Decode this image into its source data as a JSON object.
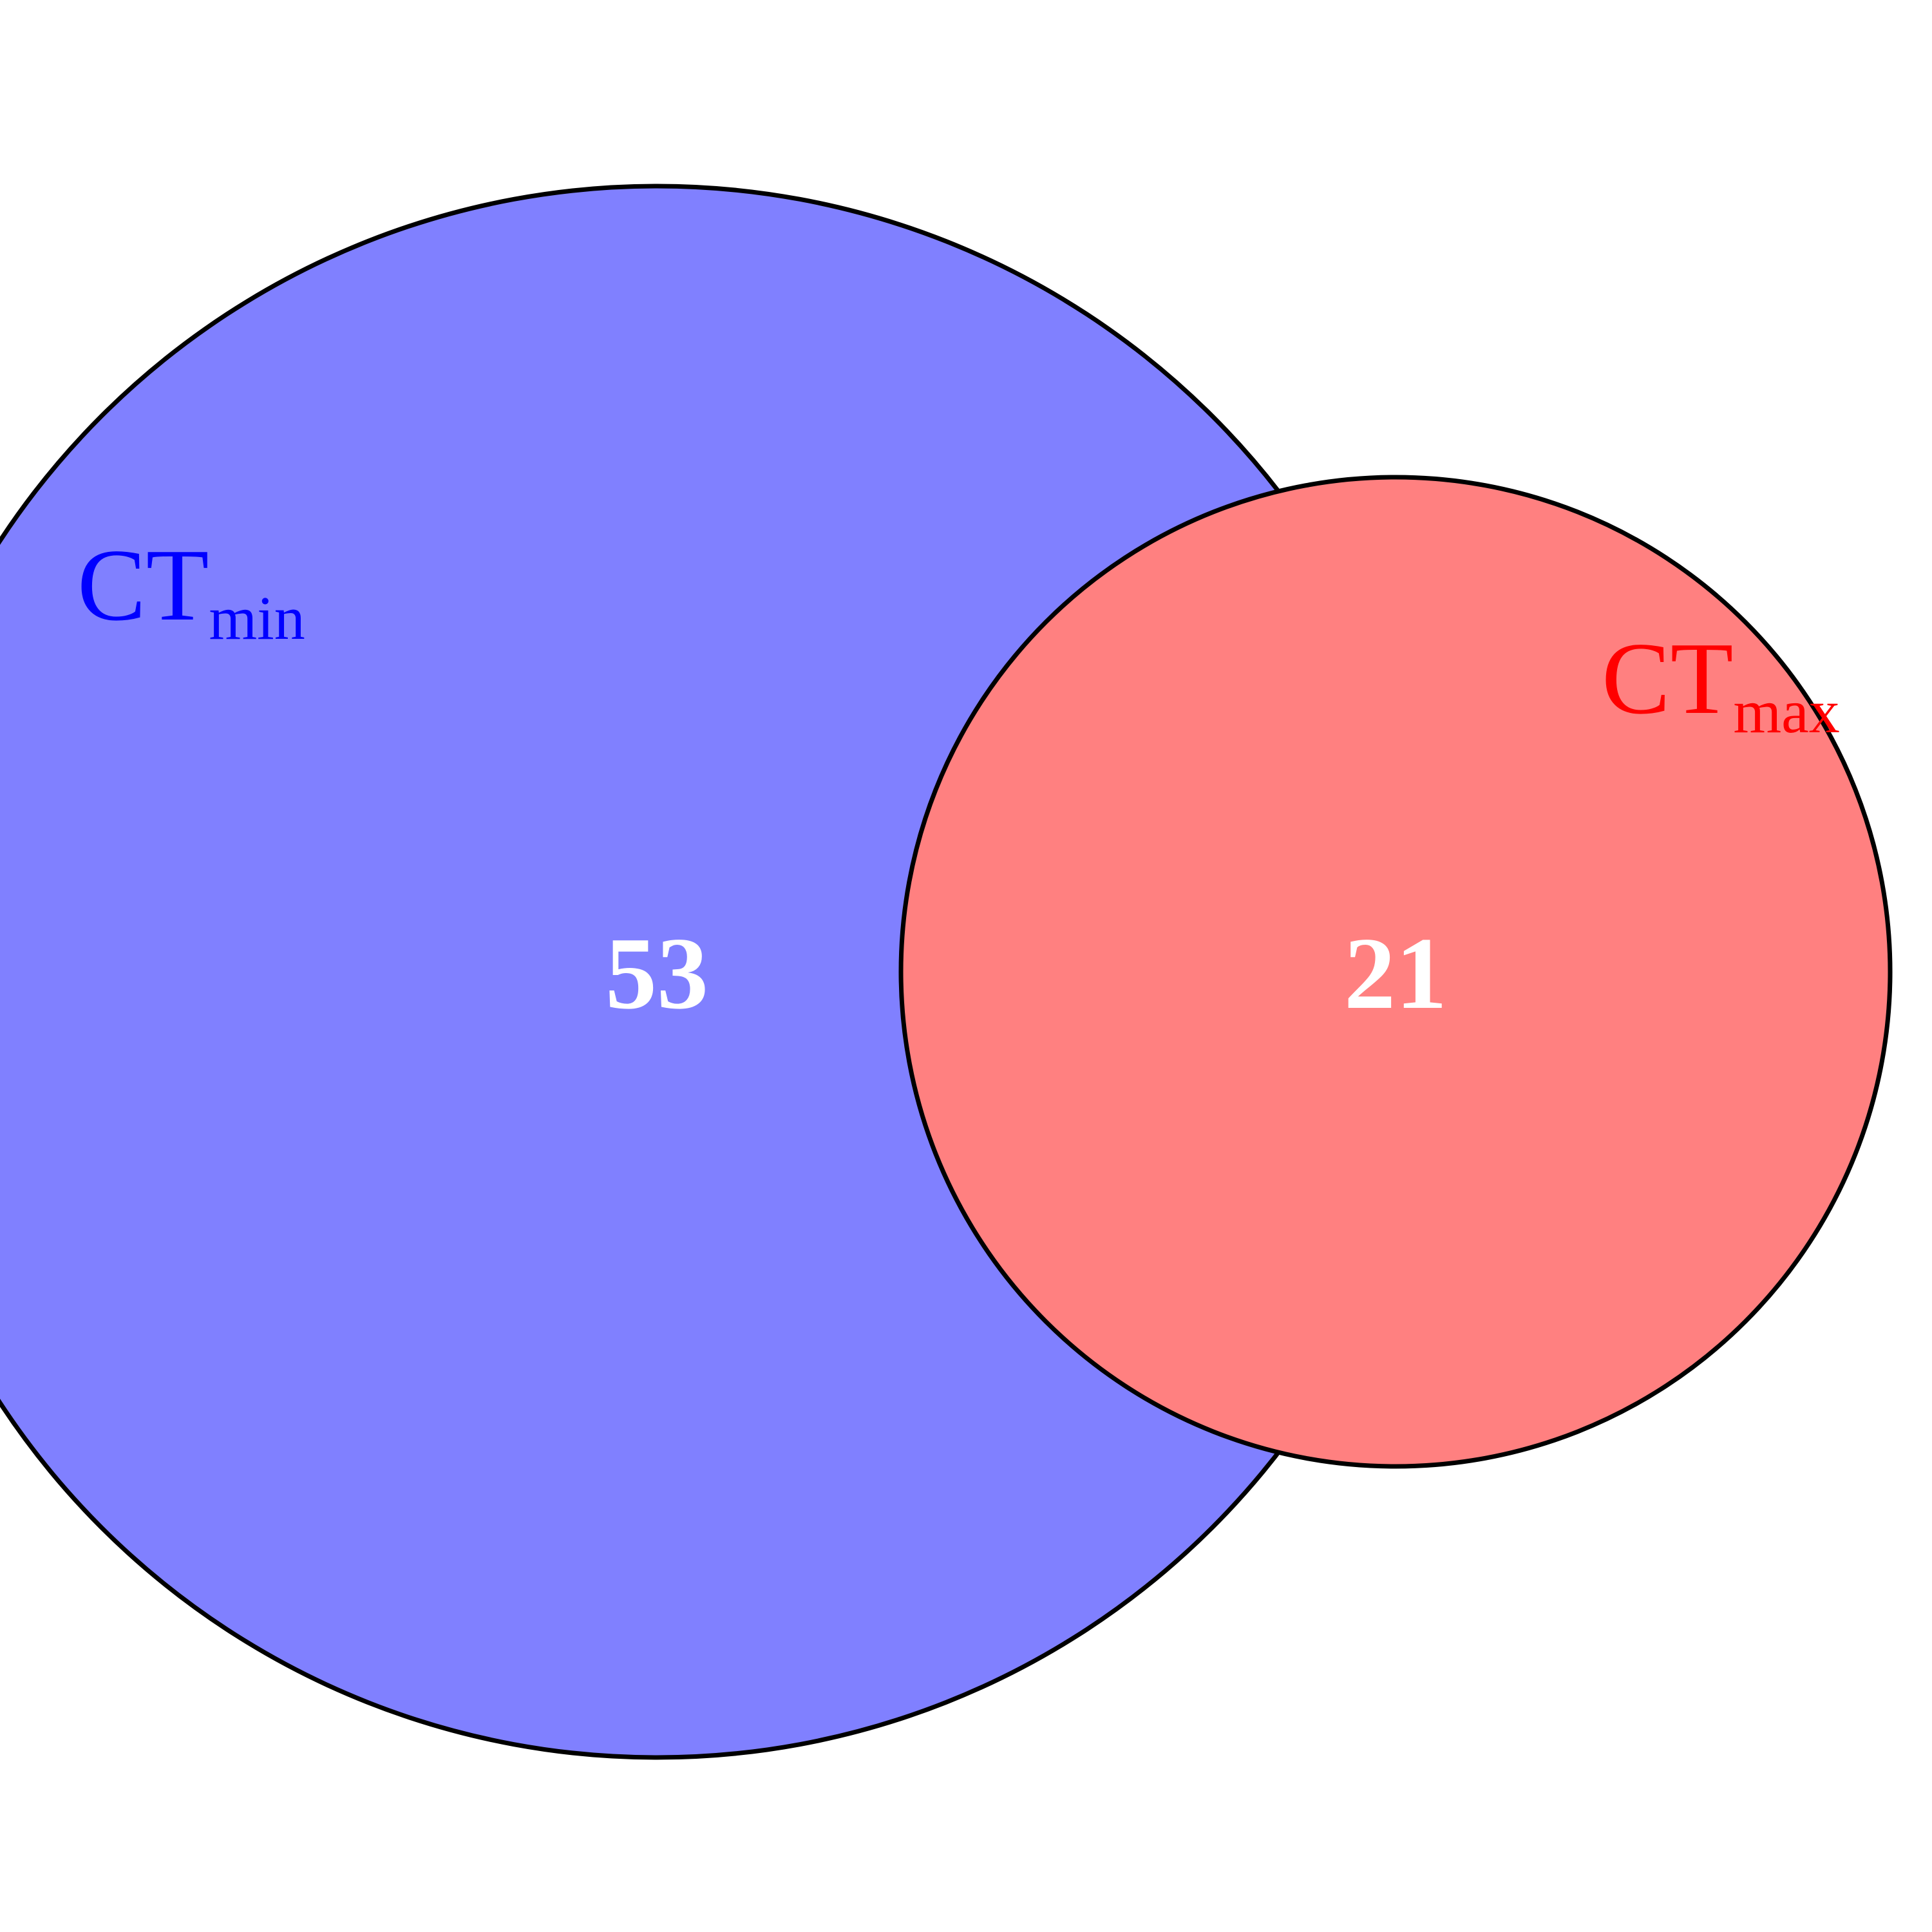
{
  "diagram": {
    "type": "venn",
    "sets": [
      {
        "id": "ct-min",
        "label_main": "CT",
        "label_sub": "min",
        "count": "53",
        "fill_color": "#8080ff",
        "label_color": "#0000ff"
      },
      {
        "id": "ct-max",
        "label_main": "CT",
        "label_sub": "max",
        "count": "21",
        "fill_color": "#ff8080",
        "label_color": "#ff0000"
      }
    ],
    "outline_color": "#000000",
    "overlap": "none"
  }
}
